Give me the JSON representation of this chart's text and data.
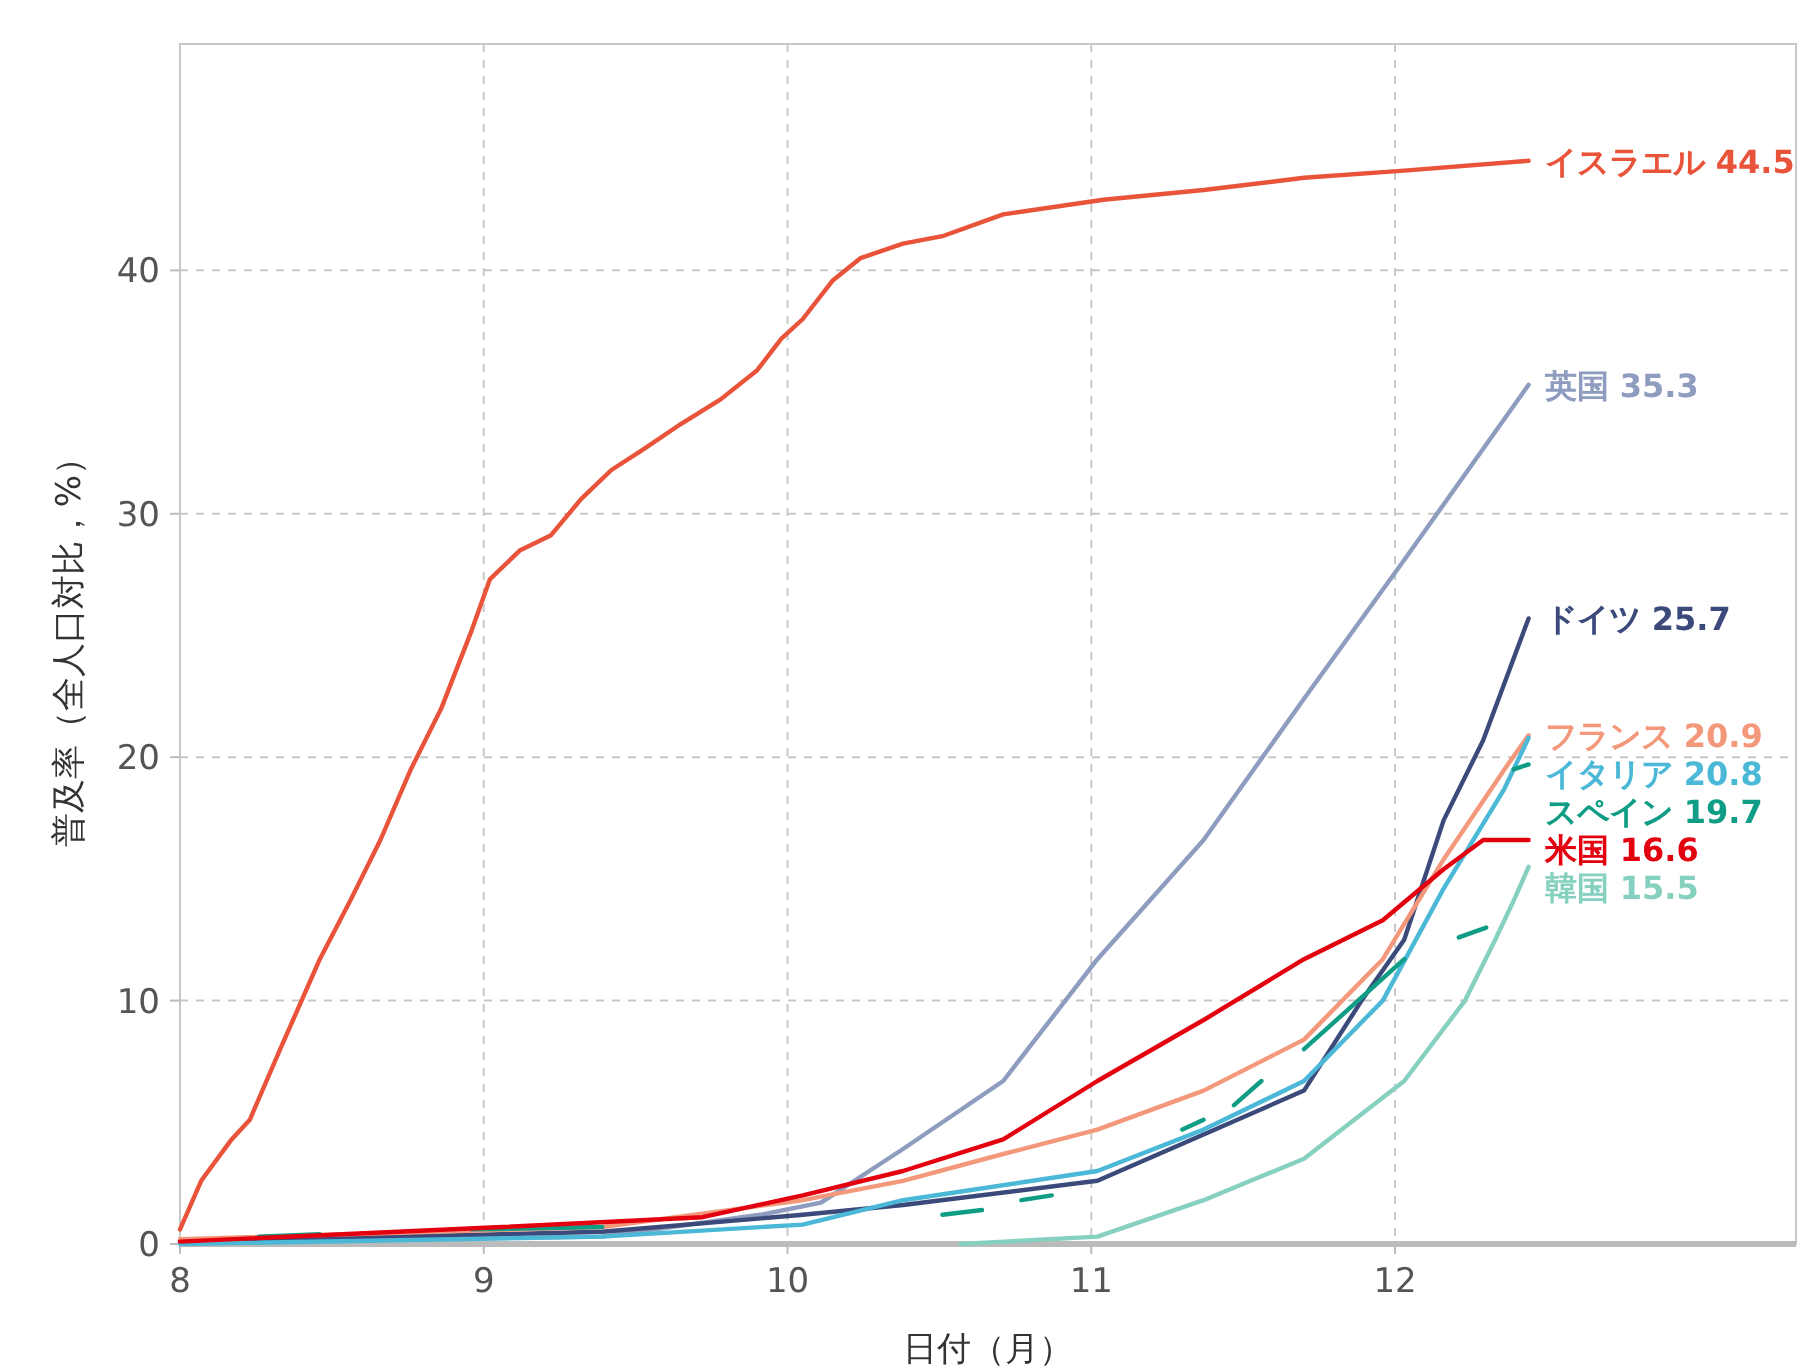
{
  "chart_data": {
    "type": "line",
    "xlabel": "日付（月）",
    "ylabel": "普及率（全人口対比，%）",
    "xlim": [
      8,
      13.32
    ],
    "ylim": [
      0,
      49.3
    ],
    "xticks": [
      8,
      9,
      10,
      11,
      12
    ],
    "yticks": [
      0,
      10,
      20,
      30,
      40
    ],
    "grid": true,
    "series": [
      {
        "name": "イスラエル",
        "color": "#e8533a",
        "x": [
          8.0,
          8.07,
          8.17,
          8.23,
          8.33,
          8.46,
          8.56,
          8.66,
          8.76,
          8.86,
          8.96,
          9.02,
          9.12,
          9.22,
          9.32,
          9.42,
          9.52,
          9.65,
          9.78,
          9.9,
          9.98,
          10.05,
          10.15,
          10.24,
          10.38,
          10.51,
          10.71,
          11.04,
          11.37,
          11.7,
          12.03,
          12.44
        ],
        "values": [
          0.6,
          2.6,
          4.3,
          5.1,
          8.0,
          11.7,
          14.1,
          16.6,
          19.5,
          22.0,
          25.2,
          27.3,
          28.5,
          29.1,
          30.6,
          31.8,
          32.6,
          33.7,
          34.7,
          35.9,
          37.2,
          38.0,
          39.6,
          40.5,
          41.1,
          41.4,
          42.3,
          42.9,
          43.3,
          43.8,
          44.1,
          44.5
        ],
        "value_labels": [
          null,
          null,
          null,
          null,
          null,
          null,
          null,
          null,
          null,
          null,
          null,
          null,
          null,
          null,
          null,
          null,
          null,
          null,
          null,
          null,
          null,
          null,
          null,
          null,
          null,
          null,
          null,
          null,
          null,
          null,
          null,
          "44.5"
        ]
      },
      {
        "name": "英国",
        "color": "#8e9cbf",
        "x": [
          8.0,
          9.39,
          9.91,
          10.11,
          10.38,
          10.71,
          11.02,
          11.37,
          11.7,
          12.03,
          12.44
        ],
        "values": [
          0.1,
          0.3,
          1.2,
          1.7,
          3.9,
          6.7,
          11.7,
          16.6,
          22.4,
          28.1,
          35.3
        ],
        "value_labels": [
          null,
          null,
          null,
          null,
          null,
          null,
          null,
          null,
          null,
          null,
          "35.3"
        ]
      },
      {
        "name": "ドイツ",
        "color": "#3b4a7a",
        "x": [
          8.0,
          9.39,
          10.05,
          10.38,
          11.02,
          11.37,
          11.7,
          11.89,
          12.03,
          12.16,
          12.29,
          12.44
        ],
        "values": [
          0.1,
          0.5,
          1.2,
          1.6,
          2.6,
          4.5,
          6.3,
          10.0,
          12.5,
          17.4,
          20.7,
          25.7
        ],
        "value_labels": [
          null,
          null,
          null,
          null,
          null,
          null,
          null,
          null,
          null,
          null,
          null,
          "25.7"
        ]
      },
      {
        "name": "フランス",
        "color": "#f4987c",
        "x": [
          8.0,
          9.39,
          10.05,
          10.38,
          10.71,
          11.02,
          11.37,
          11.7,
          11.96,
          12.16,
          12.36,
          12.44
        ],
        "values": [
          0.2,
          0.7,
          1.8,
          2.6,
          3.7,
          4.7,
          6.3,
          8.4,
          11.7,
          15.8,
          19.5,
          20.9
        ],
        "value_labels": [
          null,
          null,
          null,
          null,
          null,
          null,
          null,
          null,
          null,
          null,
          null,
          "20.9"
        ]
      },
      {
        "name": "イタリア",
        "color": "#4ab8d6",
        "x": [
          8.0,
          9.39,
          10.05,
          10.38,
          11.02,
          11.37,
          11.7,
          11.96,
          12.16,
          12.36,
          12.44
        ],
        "values": [
          0.0,
          0.3,
          0.8,
          1.8,
          3.0,
          4.7,
          6.7,
          10.0,
          14.6,
          18.7,
          20.8
        ],
        "value_labels": [
          null,
          null,
          null,
          null,
          null,
          null,
          null,
          null,
          null,
          null,
          "20.8"
        ]
      },
      {
        "name": "スペイン",
        "color": "#109d85",
        "x": [
          8.26,
          8.46,
          null,
          8.96,
          9.39,
          null,
          10.51,
          10.64,
          null,
          10.77,
          10.87,
          null,
          11.3,
          11.37,
          null,
          11.47,
          11.56,
          null,
          11.7,
          12.03,
          null,
          12.21,
          12.3,
          null,
          12.39,
          12.44
        ],
        "values": [
          0.3,
          0.4,
          null,
          0.6,
          0.7,
          null,
          1.2,
          1.4,
          null,
          1.8,
          2.0,
          null,
          4.7,
          5.1,
          null,
          5.7,
          6.7,
          null,
          8.0,
          11.7,
          null,
          12.6,
          13.0,
          null,
          19.5,
          19.7
        ],
        "value_labels": [
          null,
          null,
          null,
          null,
          null,
          null,
          null,
          null,
          null,
          null,
          null,
          null,
          null,
          null,
          null,
          null,
          null,
          null,
          null,
          null,
          null,
          null,
          null,
          null,
          null,
          "19.7"
        ]
      },
      {
        "name": "米国",
        "color": "#e3000f",
        "x": [
          8.0,
          9.06,
          9.72,
          10.05,
          10.38,
          10.71,
          11.02,
          11.37,
          11.7,
          11.96,
          12.16,
          12.29,
          12.44
        ],
        "values": [
          0.1,
          0.7,
          1.1,
          2.0,
          3.0,
          4.3,
          6.7,
          9.2,
          11.7,
          13.3,
          15.4,
          16.6,
          16.6
        ],
        "value_labels": [
          null,
          null,
          null,
          null,
          null,
          null,
          null,
          null,
          null,
          null,
          null,
          null,
          "16.6"
        ]
      },
      {
        "name": "韓国",
        "color": "#86d0c0",
        "x": [
          10.57,
          11.02,
          11.37,
          11.7,
          12.03,
          12.23,
          12.33,
          12.39,
          12.44
        ],
        "values": [
          0.0,
          0.3,
          1.8,
          3.5,
          6.7,
          10.0,
          12.5,
          14.1,
          15.5
        ],
        "value_labels": [
          null,
          null,
          null,
          null,
          null,
          null,
          null,
          null,
          "15.5"
        ]
      }
    ]
  }
}
